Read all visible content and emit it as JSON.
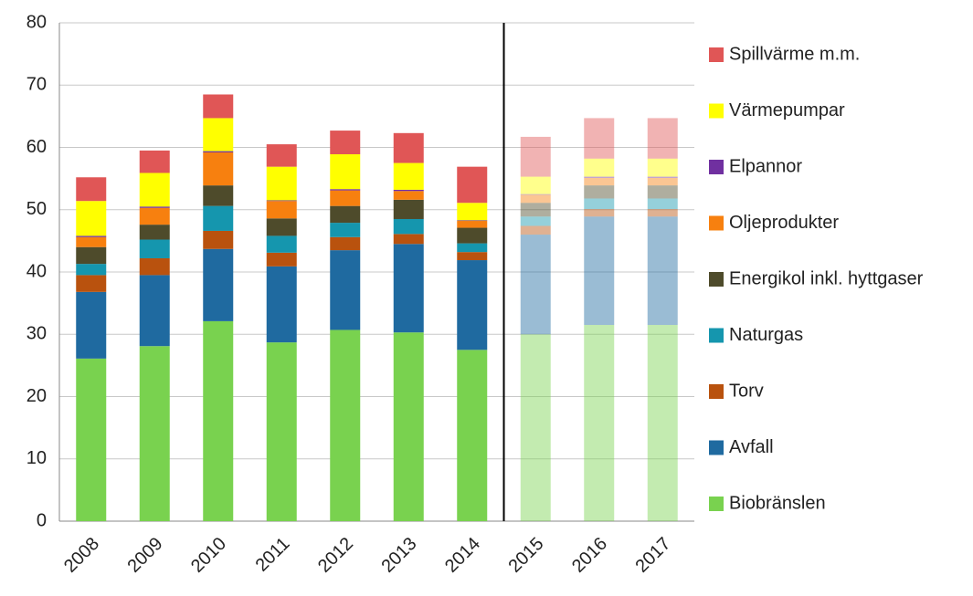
{
  "chart_data": {
    "type": "stacked_bar",
    "categories": [
      "2008",
      "2009",
      "2010",
      "2011",
      "2012",
      "2013",
      "2014",
      "2015",
      "2016",
      "2017"
    ],
    "series": [
      {
        "name": "Biobränslen",
        "color": "#79d24f",
        "values": [
          26.1,
          28.1,
          32.1,
          28.7,
          30.7,
          30.3,
          27.5,
          30.0,
          31.5,
          31.5
        ]
      },
      {
        "name": "Avfall",
        "color": "#1f6aa0",
        "values": [
          10.7,
          11.4,
          11.6,
          12.2,
          12.8,
          14.2,
          14.4,
          16.0,
          17.4,
          17.4
        ]
      },
      {
        "name": "Torv",
        "color": "#b9520e",
        "values": [
          2.7,
          2.7,
          2.9,
          2.2,
          2.1,
          1.6,
          1.3,
          1.4,
          1.2,
          1.2
        ]
      },
      {
        "name": "Naturgas",
        "color": "#1596ae",
        "values": [
          1.8,
          3.0,
          4.0,
          2.7,
          2.3,
          2.4,
          1.4,
          1.5,
          1.7,
          1.7
        ]
      },
      {
        "name": "Energikol inkl. hyttgaser",
        "color": "#4e4b2b",
        "values": [
          2.7,
          2.4,
          3.3,
          2.8,
          2.7,
          3.1,
          2.5,
          2.2,
          2.1,
          2.1
        ]
      },
      {
        "name": "Oljeprodukter",
        "color": "#f7800f",
        "values": [
          1.6,
          2.7,
          5.3,
          2.8,
          2.5,
          1.4,
          1.1,
          1.3,
          1.2,
          1.2
        ]
      },
      {
        "name": "Elpannor",
        "color": "#7030a0",
        "values": [
          0.2,
          0.2,
          0.2,
          0.1,
          0.2,
          0.2,
          0.1,
          0.1,
          0.2,
          0.2
        ]
      },
      {
        "name": "Värmepumpar",
        "color": "#ffff00",
        "values": [
          5.6,
          5.4,
          5.3,
          5.4,
          5.6,
          4.3,
          2.8,
          2.8,
          2.9,
          2.9
        ]
      },
      {
        "name": "Spillvärme m.m.",
        "color": "#e05656",
        "values": [
          3.8,
          3.6,
          3.8,
          3.6,
          3.8,
          4.8,
          5.8,
          6.4,
          6.5,
          6.5
        ]
      }
    ],
    "ylim": [
      0,
      80
    ],
    "yticks": [
      0,
      10,
      20,
      30,
      40,
      50,
      60,
      70,
      80
    ],
    "grid": true,
    "legend": "right",
    "faded_from_index": 7,
    "faded_opacity": 0.45
  }
}
